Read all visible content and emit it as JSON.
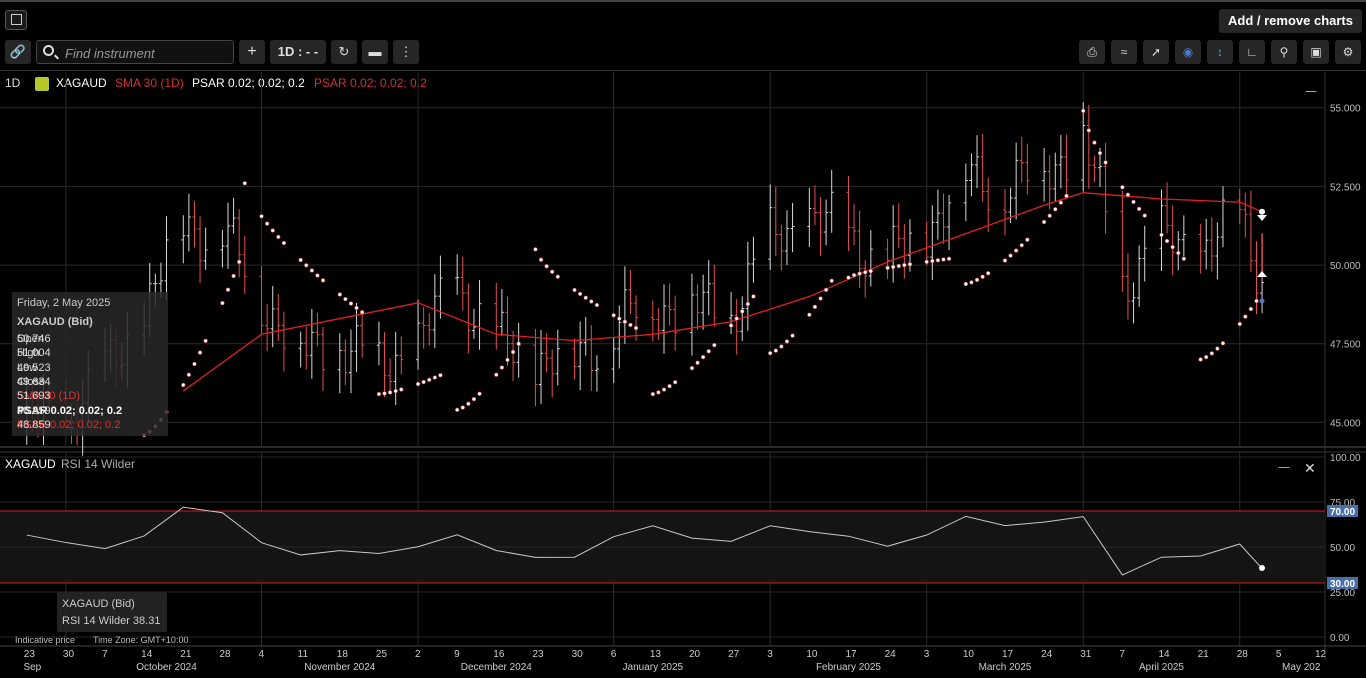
{
  "header": {
    "add_remove_label": "Add / remove charts"
  },
  "toolbar": {
    "search_placeholder": "Find instrument",
    "interval_label": "1D : - -"
  },
  "legend": {
    "interval": "1D",
    "symbol": "XAGAUD",
    "sma": "SMA 30 (1D)",
    "psar1": "PSAR 0.02; 0.02; 0.2",
    "psar2": "PSAR 0.02; 0.02; 0.2"
  },
  "tooltip": {
    "date": "Friday, 2 May 2025",
    "title": "XAGAUD (Bid)",
    "rows": [
      {
        "label": "Open",
        "value": "50.746",
        "color": "#cccccc"
      },
      {
        "label": "High",
        "value": "51.004",
        "color": "#cccccc"
      },
      {
        "label": "Low",
        "value": "49.523",
        "color": "#cccccc"
      },
      {
        "label": "Close",
        "value": "49.634",
        "color": "#cccccc"
      },
      {
        "label": "SMA 30 (1D)",
        "value": "51.693",
        "color": "#e03030"
      },
      {
        "label": "PSAR 0.02; 0.02; 0.2",
        "value": "48.859",
        "color": "#ffffff"
      },
      {
        "label": "PSAR 0.02; 0.02; 0.2",
        "value": "48.859",
        "color": "#e03030"
      }
    ]
  },
  "rsi_panel": {
    "label_symbol": "XAGAUD",
    "label_indicator": "RSI 14 Wilder",
    "tooltip_title": "XAGAUD (Bid)",
    "tooltip_value": "RSI 14 Wilder 38.31"
  },
  "footer": {
    "indicative": "Indicative price",
    "timezone": "Time Zone: GMT+10:00"
  },
  "colors": {
    "up_bar": "#d8d8d8",
    "down_bar": "#e05050",
    "sma": "#e02020",
    "psar": "#ffffff",
    "rsi_line": "#c8c8c8",
    "rsi_level": "#cc2020",
    "rsi_badge": "#4a6fa8"
  },
  "chart_data": [
    {
      "type": "ohlc",
      "symbol": "XAGAUD",
      "interval": "1D",
      "ylim": [
        44.25,
        55.5
      ],
      "y_ticks": [
        "55.000",
        "52.500",
        "50.000",
        "47.500",
        "45.000"
      ],
      "x_tick_labels": [
        "23",
        "30",
        "7",
        "14",
        "21",
        "28",
        "4",
        "11",
        "18",
        "25",
        "2",
        "9",
        "16",
        "23",
        "30",
        "6",
        "13",
        "20",
        "27",
        "3",
        "10",
        "17",
        "24",
        "3",
        "10",
        "17",
        "24",
        "31",
        "7",
        "14",
        "21",
        "28",
        "5",
        "12"
      ],
      "month_labels": [
        "Sep",
        "October 2024",
        "November 2024",
        "December 2024",
        "January 2025",
        "February 2025",
        "March 2025",
        "April 2025",
        "May 202"
      ],
      "last_bar": {
        "date": "2 May 2025",
        "open": 50.746,
        "high": 51.004,
        "low": 49.523,
        "close": 49.634
      },
      "close_path": [
        {
          "date": "2024-09-23",
          "close": 45.0
        },
        {
          "date": "2024-09-30",
          "close": 45.2
        },
        {
          "date": "2024-10-07",
          "close": 46.5
        },
        {
          "date": "2024-10-14",
          "close": 48.5
        },
        {
          "date": "2024-10-21",
          "close": 51.3
        },
        {
          "date": "2024-10-28",
          "close": 51.0
        },
        {
          "date": "2024-11-04",
          "close": 49.0
        },
        {
          "date": "2024-11-11",
          "close": 47.2
        },
        {
          "date": "2024-11-18",
          "close": 47.5
        },
        {
          "date": "2024-11-25",
          "close": 46.8
        },
        {
          "date": "2024-12-02",
          "close": 47.5
        },
        {
          "date": "2024-12-09",
          "close": 49.5
        },
        {
          "date": "2024-12-16",
          "close": 47.5
        },
        {
          "date": "2024-12-23",
          "close": 47.0
        },
        {
          "date": "2024-12-30",
          "close": 47.0
        },
        {
          "date": "2025-01-06",
          "close": 48.0
        },
        {
          "date": "2025-01-13",
          "close": 48.8
        },
        {
          "date": "2025-01-20",
          "close": 48.6
        },
        {
          "date": "2025-01-27",
          "close": 48.5
        },
        {
          "date": "2025-02-03",
          "close": 50.8
        },
        {
          "date": "2025-02-10",
          "close": 51.5
        },
        {
          "date": "2025-02-17",
          "close": 51.0
        },
        {
          "date": "2025-02-24",
          "close": 50.0
        },
        {
          "date": "2025-03-03",
          "close": 51.2
        },
        {
          "date": "2025-03-10",
          "close": 52.8
        },
        {
          "date": "2025-03-17",
          "close": 52.5
        },
        {
          "date": "2025-03-24",
          "close": 53.0
        },
        {
          "date": "2025-03-31",
          "close": 54.0
        },
        {
          "date": "2025-04-07",
          "close": 49.5
        },
        {
          "date": "2025-04-14",
          "close": 50.8
        },
        {
          "date": "2025-04-21",
          "close": 50.5
        },
        {
          "date": "2025-04-28",
          "close": 51.5
        },
        {
          "date": "2025-05-02",
          "close": 49.634
        }
      ],
      "sma_30": [
        {
          "date": "2024-10-21",
          "value": 46.0
        },
        {
          "date": "2024-11-04",
          "value": 47.8
        },
        {
          "date": "2024-11-18",
          "value": 48.3
        },
        {
          "date": "2024-12-02",
          "value": 48.8
        },
        {
          "date": "2024-12-16",
          "value": 47.8
        },
        {
          "date": "2024-12-30",
          "value": 47.6
        },
        {
          "date": "2025-01-13",
          "value": 47.8
        },
        {
          "date": "2025-01-27",
          "value": 48.2
        },
        {
          "date": "2025-02-10",
          "value": 49.0
        },
        {
          "date": "2025-02-24",
          "value": 50.1
        },
        {
          "date": "2025-03-10",
          "value": 51.0
        },
        {
          "date": "2025-03-24",
          "value": 51.9
        },
        {
          "date": "2025-03-31",
          "value": 52.3
        },
        {
          "date": "2025-04-14",
          "value": 52.1
        },
        {
          "date": "2025-04-28",
          "value": 52.0
        },
        {
          "date": "2025-05-02",
          "value": 51.693
        }
      ],
      "psar_latest": 48.859
    },
    {
      "type": "line",
      "indicator": "RSI 14 Wilder",
      "ylim": [
        0,
        100
      ],
      "y_ticks": [
        "100.00",
        "75.00",
        "50.00",
        "25.00",
        "0.00"
      ],
      "levels": [
        70.0,
        30.0
      ],
      "level_labels": [
        "70.00",
        "30.00"
      ],
      "latest": 38.31,
      "values": [
        {
          "date": "2024-09-23",
          "value": 55
        },
        {
          "date": "2024-09-30",
          "value": 52
        },
        {
          "date": "2024-10-07",
          "value": 50
        },
        {
          "date": "2024-10-14",
          "value": 58
        },
        {
          "date": "2024-10-21",
          "value": 74
        },
        {
          "date": "2024-10-28",
          "value": 70
        },
        {
          "date": "2024-11-04",
          "value": 52
        },
        {
          "date": "2024-11-11",
          "value": 44
        },
        {
          "date": "2024-11-18",
          "value": 46
        },
        {
          "date": "2024-11-25",
          "value": 45
        },
        {
          "date": "2024-12-02",
          "value": 50
        },
        {
          "date": "2024-12-09",
          "value": 58
        },
        {
          "date": "2024-12-16",
          "value": 50
        },
        {
          "date": "2024-12-23",
          "value": 46
        },
        {
          "date": "2024-12-30",
          "value": 45
        },
        {
          "date": "2025-01-06",
          "value": 55
        },
        {
          "date": "2025-01-13",
          "value": 60
        },
        {
          "date": "2025-01-20",
          "value": 53
        },
        {
          "date": "2025-01-27",
          "value": 52
        },
        {
          "date": "2025-02-03",
          "value": 62
        },
        {
          "date": "2025-02-10",
          "value": 60
        },
        {
          "date": "2025-02-17",
          "value": 58
        },
        {
          "date": "2025-02-24",
          "value": 52
        },
        {
          "date": "2025-03-03",
          "value": 57
        },
        {
          "date": "2025-03-10",
          "value": 66
        },
        {
          "date": "2025-03-17",
          "value": 60
        },
        {
          "date": "2025-03-24",
          "value": 62
        },
        {
          "date": "2025-03-31",
          "value": 66
        },
        {
          "date": "2025-04-07",
          "value": 35
        },
        {
          "date": "2025-04-14",
          "value": 46
        },
        {
          "date": "2025-04-21",
          "value": 47
        },
        {
          "date": "2025-04-28",
          "value": 53
        },
        {
          "date": "2025-05-02",
          "value": 38.31
        }
      ]
    }
  ]
}
